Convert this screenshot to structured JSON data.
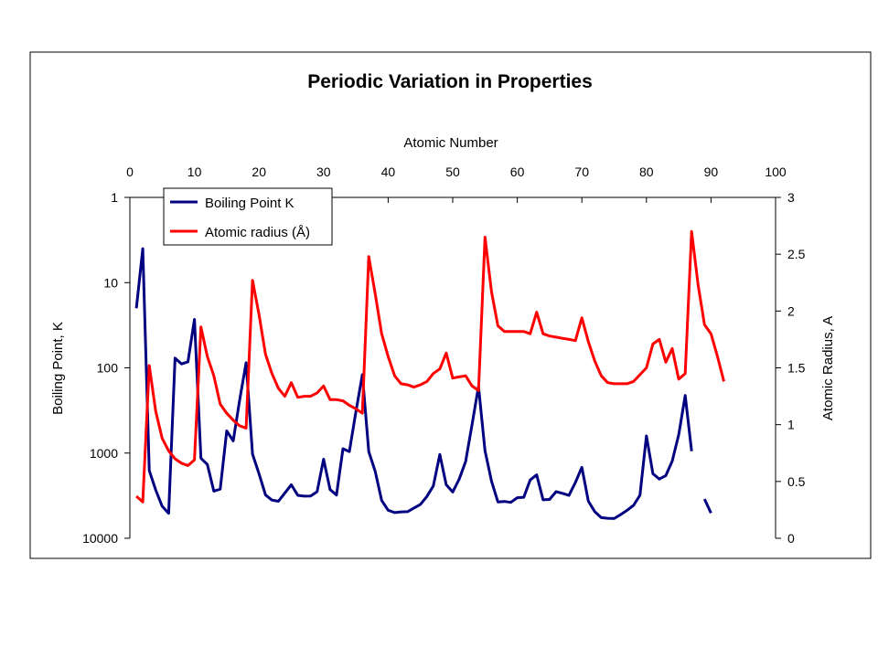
{
  "chart_data": {
    "type": "line",
    "title": "Periodic Variation in Properties",
    "xlabel": "Atomic Number",
    "ylabel_left": "Boiling Point, K",
    "ylabel_right": "Atomic Radius, A",
    "xlim": [
      0,
      100
    ],
    "x_ticks": [
      0,
      10,
      20,
      30,
      40,
      50,
      60,
      70,
      80,
      90,
      100
    ],
    "y_left_scale": "log",
    "y_left_reversed": true,
    "y_left_ticks": [
      "1",
      "10",
      "100",
      "1000",
      "10000"
    ],
    "y_left_range": [
      1,
      10000
    ],
    "y_right_range": [
      0,
      3
    ],
    "y_right_ticks": [
      "0",
      "0.5",
      "1",
      "1.5",
      "2",
      "2.5",
      "3"
    ],
    "legend_position": "top-left",
    "grid": false,
    "series": [
      {
        "name": "Boiling Point K",
        "axis": "left",
        "color": "#000080",
        "segments": [
          [
            [
              1,
              20
            ],
            [
              2,
              4
            ],
            [
              3,
              1600
            ],
            [
              4,
              2700
            ],
            [
              5,
              4200
            ],
            [
              6,
              5100
            ],
            [
              7,
              77
            ],
            [
              8,
              90
            ],
            [
              9,
              85
            ],
            [
              10,
              27
            ],
            [
              11,
              1150
            ],
            [
              12,
              1360
            ],
            [
              13,
              2800
            ],
            [
              14,
              2650
            ],
            [
              15,
              550
            ],
            [
              16,
              720
            ],
            [
              17,
              240
            ],
            [
              18,
              87
            ],
            [
              19,
              1030
            ],
            [
              20,
              1750
            ],
            [
              21,
              3100
            ],
            [
              22,
              3560
            ],
            [
              23,
              3680
            ],
            [
              24,
              2950
            ],
            [
              25,
              2350
            ],
            [
              26,
              3130
            ],
            [
              27,
              3200
            ],
            [
              28,
              3190
            ],
            [
              29,
              2840
            ],
            [
              30,
              1180
            ],
            [
              31,
              2680
            ],
            [
              32,
              3110
            ],
            [
              33,
              890
            ],
            [
              34,
              960
            ],
            [
              35,
              330
            ],
            [
              36,
              120
            ],
            [
              37,
              960
            ],
            [
              38,
              1650
            ],
            [
              39,
              3600
            ],
            [
              40,
              4680
            ],
            [
              41,
              5000
            ],
            [
              42,
              4900
            ],
            [
              43,
              4880
            ],
            [
              44,
              4420
            ],
            [
              45,
              4000
            ],
            [
              46,
              3230
            ],
            [
              47,
              2430
            ],
            [
              48,
              1040
            ],
            [
              49,
              2350
            ],
            [
              50,
              2870
            ],
            [
              51,
              2020
            ],
            [
              52,
              1260
            ],
            [
              53,
              460
            ],
            [
              54,
              165
            ],
            [
              55,
              940
            ],
            [
              56,
              2130
            ],
            [
              57,
              3740
            ],
            [
              58,
              3700
            ],
            [
              59,
              3790
            ],
            [
              60,
              3340
            ],
            [
              61,
              3300
            ],
            [
              62,
              2070
            ],
            [
              63,
              1800
            ],
            [
              64,
              3540
            ],
            [
              65,
              3500
            ],
            [
              66,
              2840
            ],
            [
              67,
              2970
            ],
            [
              68,
              3140
            ],
            [
              69,
              2220
            ],
            [
              70,
              1470
            ],
            [
              71,
              3670
            ],
            [
              72,
              4880
            ],
            [
              73,
              5730
            ],
            [
              74,
              5830
            ],
            [
              75,
              5870
            ],
            [
              76,
              5280
            ],
            [
              77,
              4700
            ],
            [
              78,
              4100
            ],
            [
              79,
              3130
            ],
            [
              80,
              630
            ],
            [
              81,
              1750
            ],
            [
              82,
              2020
            ],
            [
              83,
              1840
            ],
            [
              84,
              1240
            ],
            [
              85,
              610
            ],
            [
              86,
              211
            ],
            [
              87,
              950
            ]
          ],
          [
            [
              89,
              3470
            ],
            [
              90,
              5060
            ]
          ]
        ]
      },
      {
        "name": "Atomic radius (Å)",
        "axis": "right",
        "color": "#ff0000",
        "segments": [
          [
            [
              1,
              0.37
            ],
            [
              2,
              0.32
            ],
            [
              3,
              1.52
            ],
            [
              4,
              1.12
            ],
            [
              5,
              0.88
            ],
            [
              6,
              0.77
            ],
            [
              7,
              0.7
            ],
            [
              8,
              0.66
            ],
            [
              9,
              0.64
            ],
            [
              10,
              0.69
            ],
            [
              11,
              1.86
            ],
            [
              12,
              1.6
            ],
            [
              13,
              1.43
            ],
            [
              14,
              1.18
            ],
            [
              15,
              1.1
            ],
            [
              16,
              1.04
            ],
            [
              17,
              0.99
            ],
            [
              18,
              0.97
            ],
            [
              19,
              2.27
            ],
            [
              20,
              1.97
            ],
            [
              21,
              1.62
            ],
            [
              22,
              1.45
            ],
            [
              23,
              1.32
            ],
            [
              24,
              1.25
            ],
            [
              25,
              1.37
            ],
            [
              26,
              1.24
            ],
            [
              27,
              1.25
            ],
            [
              28,
              1.25
            ],
            [
              29,
              1.28
            ],
            [
              30,
              1.34
            ],
            [
              31,
              1.22
            ],
            [
              32,
              1.22
            ],
            [
              33,
              1.21
            ],
            [
              34,
              1.17
            ],
            [
              35,
              1.14
            ],
            [
              36,
              1.1
            ],
            [
              37,
              2.48
            ],
            [
              38,
              2.15
            ],
            [
              39,
              1.8
            ],
            [
              40,
              1.6
            ],
            [
              41,
              1.43
            ],
            [
              42,
              1.36
            ],
            [
              43,
              1.35
            ],
            [
              44,
              1.33
            ],
            [
              45,
              1.35
            ],
            [
              46,
              1.38
            ],
            [
              47,
              1.45
            ],
            [
              48,
              1.49
            ],
            [
              49,
              1.63
            ],
            [
              50,
              1.41
            ],
            [
              51,
              1.42
            ],
            [
              52,
              1.43
            ],
            [
              53,
              1.34
            ],
            [
              54,
              1.3
            ],
            [
              55,
              2.65
            ],
            [
              56,
              2.17
            ],
            [
              57,
              1.87
            ],
            [
              58,
              1.82
            ],
            [
              59,
              1.82
            ],
            [
              60,
              1.82
            ],
            [
              61,
              1.82
            ],
            [
              62,
              1.8
            ],
            [
              63,
              1.99
            ],
            [
              64,
              1.8
            ],
            [
              65,
              1.78
            ],
            [
              66,
              1.77
            ],
            [
              67,
              1.76
            ],
            [
              68,
              1.75
            ],
            [
              69,
              1.74
            ],
            [
              70,
              1.94
            ],
            [
              71,
              1.73
            ],
            [
              72,
              1.56
            ],
            [
              73,
              1.43
            ],
            [
              74,
              1.37
            ],
            [
              75,
              1.36
            ],
            [
              76,
              1.36
            ],
            [
              77,
              1.36
            ],
            [
              78,
              1.38
            ],
            [
              79,
              1.44
            ],
            [
              80,
              1.5
            ],
            [
              81,
              1.71
            ],
            [
              82,
              1.75
            ],
            [
              83,
              1.55
            ],
            [
              84,
              1.67
            ],
            [
              85,
              1.4
            ],
            [
              86,
              1.45
            ],
            [
              87,
              2.7
            ],
            [
              88,
              2.23
            ],
            [
              89,
              1.88
            ],
            [
              90,
              1.8
            ],
            [
              91,
              1.6
            ],
            [
              92,
              1.38
            ]
          ]
        ]
      }
    ]
  }
}
